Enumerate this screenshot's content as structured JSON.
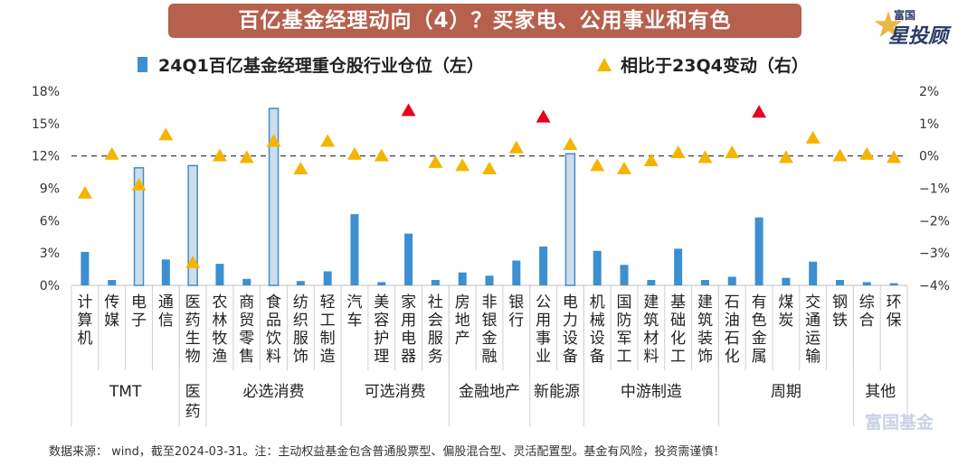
{
  "title": "百亿基金经理动向（4）？买家电、公用事业和有色",
  "logo": {
    "top": "富国",
    "main": "星投顾",
    "icon": "star-icon"
  },
  "legend": {
    "bar_label": "24Q1百亿基金经理重仓股行业仓位（左）",
    "triangle_label": "相比于23Q4变动（右）"
  },
  "footer": "数据来源： wind，截至2024-03-31。注：主动权益基金包含普通股票型、偏股混合型、灵活配置型。基金有风险，投资需谨慎！",
  "watermark": "富国基金",
  "colors": {
    "bar": "#3c8fd1",
    "bar_highlight_fill": "#cfdcea",
    "bar_highlight_stroke": "#3c8fd1",
    "triangle": "#f4b400",
    "triangle_highlight": "#e8001c",
    "dashed_line": "#555555"
  },
  "chart_data": {
    "type": "bar",
    "title": "",
    "y_left": {
      "range": [
        0,
        18
      ],
      "ticks": [
        "0%",
        "3%",
        "6%",
        "9%",
        "12%",
        "15%",
        "18%"
      ],
      "tick_values": [
        0,
        3,
        6,
        9,
        12,
        15,
        18
      ]
    },
    "y_right": {
      "range": [
        -4,
        2
      ],
      "ticks": [
        "−4%",
        "−3%",
        "−2%",
        "−1%",
        "0%",
        "1%",
        "2%"
      ],
      "tick_values": [
        -4,
        -3,
        -2,
        -1,
        0,
        1,
        2
      ]
    },
    "reference_line_right": 0,
    "categories": [
      "计算机",
      "传媒",
      "电子",
      "通信",
      "医药生物",
      "农林牧渔",
      "商贸零售",
      "食品饮料",
      "纺织服饰",
      "轻工制造",
      "汽车",
      "美容护理",
      "家用电器",
      "社会服务",
      "房地产",
      "非银金融",
      "银行",
      "公用事业",
      "电力设备",
      "机械设备",
      "国防军工",
      "建筑材料",
      "基础化工",
      "建筑装饰",
      "石油石化",
      "有色金属",
      "煤炭",
      "交通运输",
      "钢铁",
      "综合",
      "环保"
    ],
    "series": [
      {
        "name": "24Q1百亿基金经理重仓股行业仓位（左）",
        "axis": "left",
        "values": [
          3.1,
          0.5,
          10.9,
          2.4,
          11.1,
          2.0,
          0.6,
          16.4,
          0.4,
          1.3,
          6.6,
          0.3,
          4.8,
          0.5,
          1.2,
          0.9,
          2.3,
          3.6,
          12.2,
          3.2,
          1.9,
          0.5,
          3.4,
          0.5,
          0.8,
          6.3,
          0.7,
          2.2,
          0.5,
          0.3,
          0.2
        ],
        "highlighted": [
          "电子",
          "医药生物",
          "食品饮料",
          "电力设备"
        ]
      },
      {
        "name": "相比于23Q4变动（右）",
        "axis": "right",
        "values": [
          -1.15,
          0.05,
          -0.9,
          0.65,
          -3.3,
          0.0,
          -0.05,
          0.45,
          -0.4,
          0.45,
          0.05,
          0.0,
          1.4,
          -0.2,
          -0.3,
          -0.4,
          0.25,
          1.2,
          0.35,
          -0.3,
          -0.4,
          -0.15,
          0.1,
          -0.05,
          0.1,
          1.35,
          -0.05,
          0.55,
          0.0,
          0.05,
          -0.05
        ],
        "highlighted": [
          "家用电器",
          "公用事业",
          "有色金属"
        ]
      }
    ],
    "groups": [
      {
        "name": "TMT",
        "count": 4
      },
      {
        "name": "医药",
        "count": 1
      },
      {
        "name": "必选消费",
        "count": 5
      },
      {
        "name": "可选消费",
        "count": 4
      },
      {
        "name": "金融地产",
        "count": 3
      },
      {
        "name": "新能源",
        "count": 2
      },
      {
        "name": "中游制造",
        "count": 5
      },
      {
        "name": "周期",
        "count": 5
      },
      {
        "name": "其他",
        "count": 2
      }
    ]
  }
}
